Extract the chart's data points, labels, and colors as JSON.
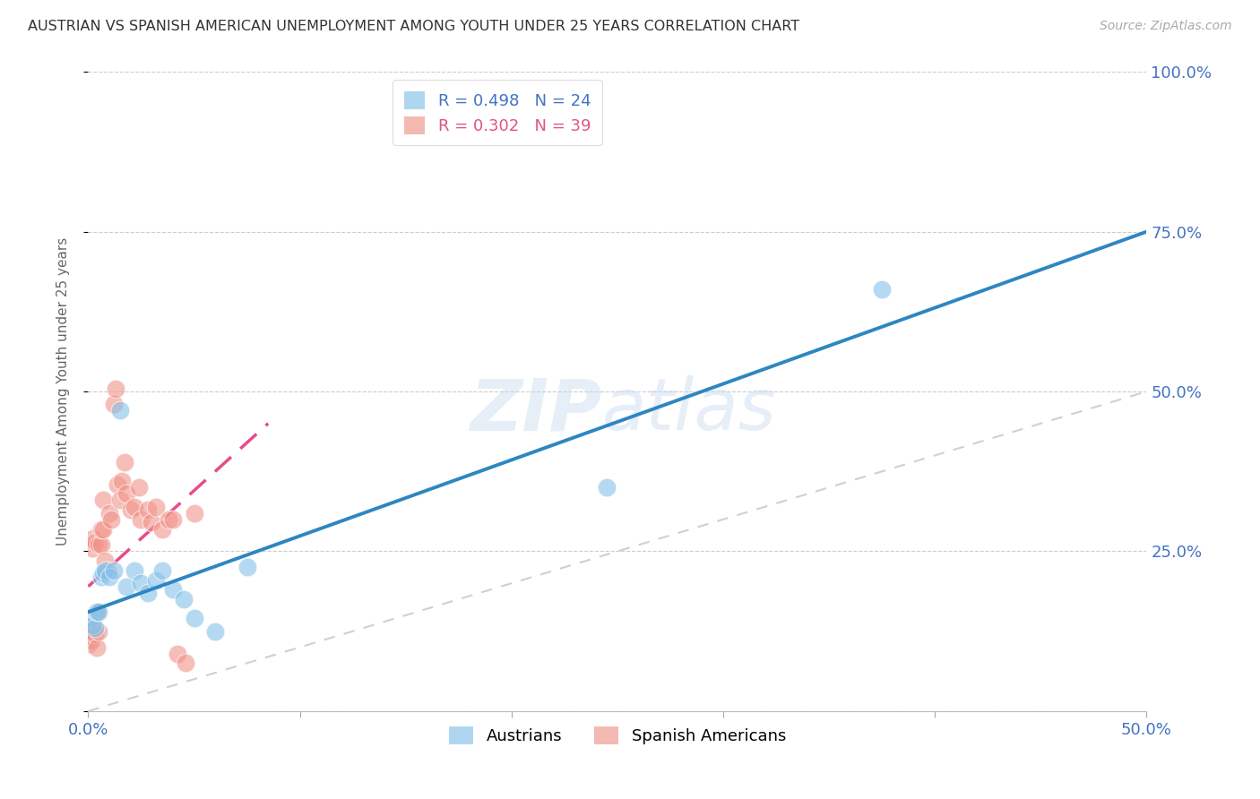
{
  "title": "AUSTRIAN VS SPANISH AMERICAN UNEMPLOYMENT AMONG YOUTH UNDER 25 YEARS CORRELATION CHART",
  "source": "Source: ZipAtlas.com",
  "ylabel": "Unemployment Among Youth under 25 years",
  "xlim": [
    0.0,
    0.5
  ],
  "ylim": [
    0.0,
    1.0
  ],
  "xtick_positions": [
    0.0,
    0.1,
    0.2,
    0.3,
    0.4,
    0.5
  ],
  "xtick_labels": [
    "0.0%",
    "",
    "",
    "",
    "",
    "50.0%"
  ],
  "ytick_positions": [
    0.25,
    0.5,
    0.75,
    1.0
  ],
  "ytick_labels": [
    "25.0%",
    "50.0%",
    "75.0%",
    "100.0%"
  ],
  "R_austrians": 0.498,
  "N_austrians": 24,
  "R_spanish": 0.302,
  "N_spanish": 39,
  "color_austrians": "#85c1e9",
  "color_spanish": "#f1948a",
  "color_axis": "#4472c4",
  "line_color_austrians": "#2e86c1",
  "line_color_spanish": "#e74c8b",
  "austrians_x": [
    0.001,
    0.002,
    0.003,
    0.004,
    0.005,
    0.006,
    0.007,
    0.008,
    0.01,
    0.012,
    0.015,
    0.018,
    0.022,
    0.025,
    0.028,
    0.032,
    0.035,
    0.04,
    0.045,
    0.05,
    0.06,
    0.075,
    0.245,
    0.375
  ],
  "austrians_y": [
    0.145,
    0.135,
    0.13,
    0.155,
    0.155,
    0.21,
    0.215,
    0.22,
    0.21,
    0.22,
    0.47,
    0.195,
    0.22,
    0.2,
    0.185,
    0.205,
    0.22,
    0.19,
    0.175,
    0.145,
    0.125,
    0.225,
    0.35,
    0.66
  ],
  "spanish_x": [
    0.0003,
    0.001,
    0.0015,
    0.002,
    0.0025,
    0.003,
    0.003,
    0.004,
    0.004,
    0.005,
    0.005,
    0.006,
    0.006,
    0.007,
    0.007,
    0.008,
    0.009,
    0.01,
    0.011,
    0.012,
    0.013,
    0.014,
    0.015,
    0.016,
    0.017,
    0.018,
    0.02,
    0.022,
    0.024,
    0.025,
    0.028,
    0.03,
    0.032,
    0.035,
    0.038,
    0.04,
    0.042,
    0.046,
    0.05
  ],
  "spanish_y": [
    0.105,
    0.13,
    0.11,
    0.255,
    0.27,
    0.12,
    0.265,
    0.1,
    0.155,
    0.125,
    0.26,
    0.26,
    0.285,
    0.285,
    0.33,
    0.235,
    0.22,
    0.31,
    0.3,
    0.48,
    0.505,
    0.355,
    0.33,
    0.36,
    0.39,
    0.34,
    0.315,
    0.32,
    0.35,
    0.3,
    0.315,
    0.295,
    0.32,
    0.285,
    0.3,
    0.3,
    0.09,
    0.075,
    0.31
  ],
  "austrians_line_x0": 0.0,
  "austrians_line_y0": 0.155,
  "austrians_line_x1": 0.5,
  "austrians_line_y1": 0.75,
  "spanish_line_x0": 0.0,
  "spanish_line_y0": 0.195,
  "spanish_line_x1": 0.085,
  "spanish_line_y1": 0.45
}
